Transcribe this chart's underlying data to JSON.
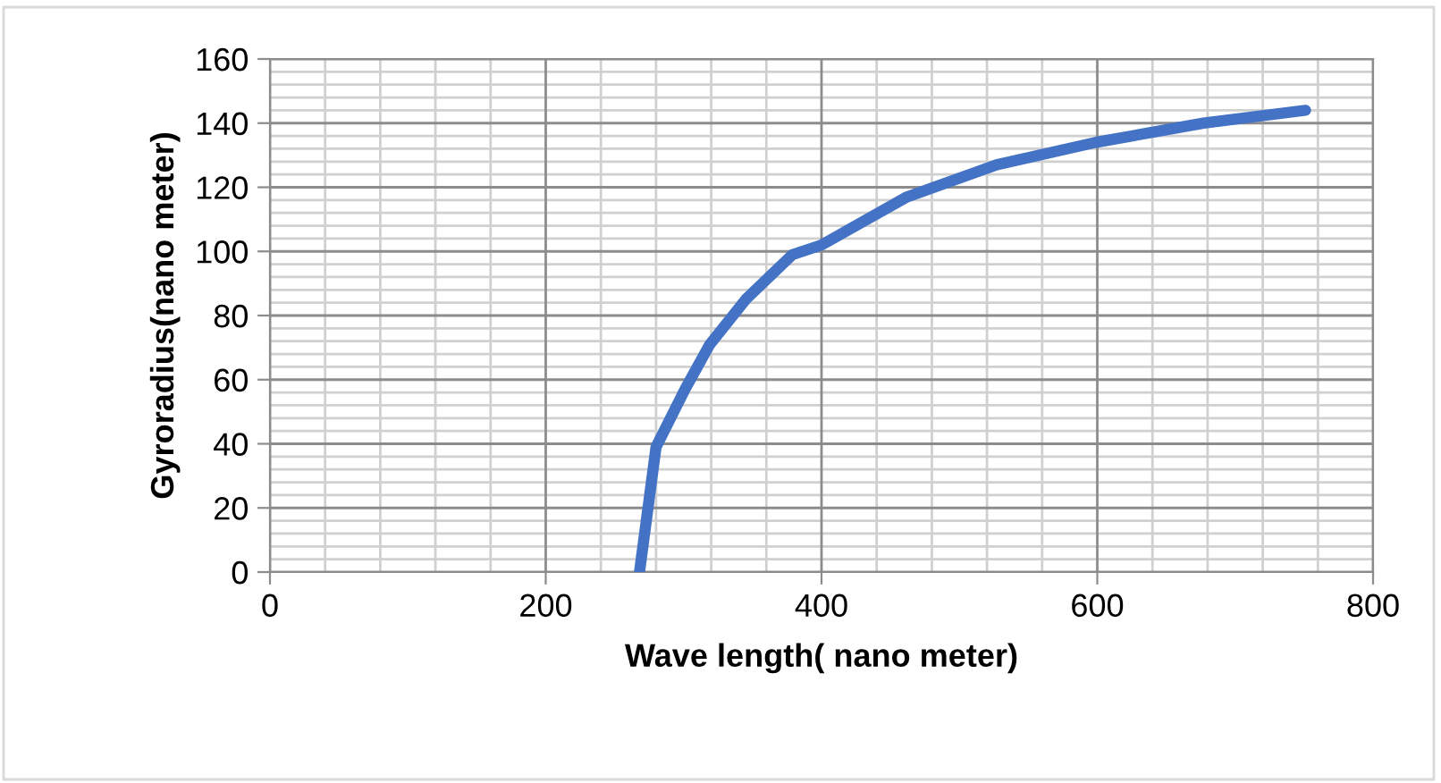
{
  "chart_data": {
    "type": "line",
    "xlabel": "Wave length( nano meter)",
    "ylabel": "Gyroradius(nano meter)",
    "x": [
      268,
      280,
      301,
      319,
      345,
      379,
      400,
      462,
      527,
      599,
      677,
      751
    ],
    "series": [
      {
        "color": "#4472c4",
        "values": [
          0,
          39,
          57,
          71,
          85,
          99,
          102,
          117,
          127,
          134,
          140,
          144
        ]
      }
    ],
    "xlim": [
      0,
      800
    ],
    "xticks": [
      0,
      200,
      400,
      600,
      800
    ],
    "ylim": [
      0,
      160
    ],
    "yticks": [
      0,
      20,
      40,
      60,
      80,
      100,
      120,
      140,
      160
    ],
    "grid": true,
    "marker": "none",
    "line_style": "solid"
  }
}
